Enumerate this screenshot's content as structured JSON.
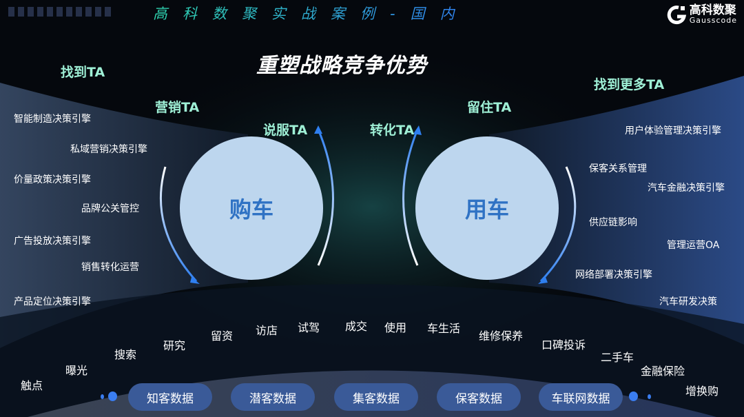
{
  "header": {
    "banner": "高科数聚实战案例-国内",
    "logo_cn": "高科数聚",
    "logo_en": "Gausscode"
  },
  "title": "重塑战略竞争优势",
  "ta_labels": {
    "find": "找到TA",
    "market": "营销TA",
    "persuade": "说服TA",
    "convert": "转化TA",
    "retain": "留住TA",
    "find_more": "找到更多TA"
  },
  "circles": {
    "buy": "购车",
    "use": "用车"
  },
  "left_items": [
    "智能制造决策引擎",
    "私域营销决策引擎",
    "价量政策决策引擎",
    "品牌公关管控",
    "广告投放决策引擎",
    "销售转化运营",
    "产品定位决策引擎"
  ],
  "right_items": [
    "用户体验管理决策引擎",
    "保客关系管理",
    "汽车金融决策引擎",
    "供应链影响",
    "管理运营OA",
    "网络部署决策引擎",
    "汽车研发决策"
  ],
  "journey": [
    "触点",
    "曝光",
    "搜索",
    "研究",
    "留资",
    "访店",
    "试驾",
    "成交",
    "使用",
    "车生活",
    "维修保养",
    "口碑投诉",
    "二手车",
    "金融保险",
    "增换购"
  ],
  "data_pills": [
    "知客数据",
    "潜客数据",
    "集客数据",
    "保客数据",
    "车联网数据"
  ],
  "colors": {
    "circle": "#bdd6ee",
    "circle_text": "#2f72c4",
    "ta": "#9ff0d6",
    "pill": "#3a5a98",
    "arrow": "#2f7ff0"
  }
}
